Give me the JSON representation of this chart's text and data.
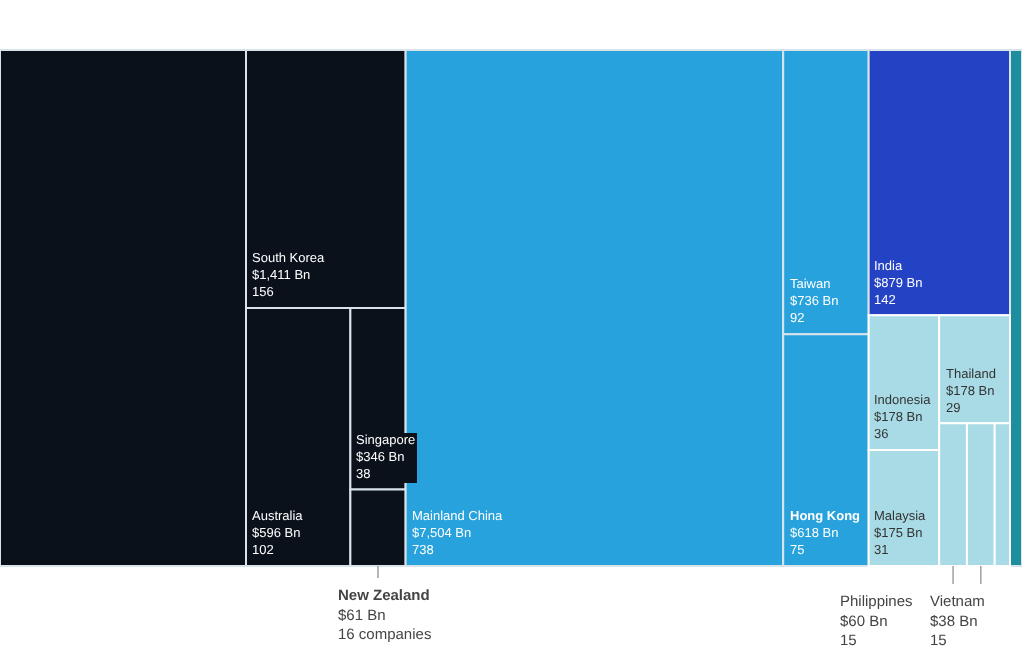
{
  "chart_data": {
    "type": "other",
    "categories": [
      null,
      "South Korea",
      "Australia",
      "Singapore",
      "New Zealand",
      "Mainland China",
      "Taiwan",
      "Hong Kong",
      "India",
      null,
      "Indonesia",
      "Thailand",
      "Malaysia",
      "Philippines",
      "Vietnam",
      null
    ],
    "series": [
      {
        "values": [
          null,
          1411,
          596,
          346,
          61,
          7504,
          736,
          618,
          879,
          null,
          178,
          178,
          175,
          60,
          38,
          null
        ],
        "value_labels": [
          null,
          "$1,411 Bn",
          "$596 Bn",
          "$346 Bn",
          "$61 Bn",
          "$7,504 Bn",
          "$736 Bn",
          "$618 Bn",
          "$879 Bn",
          null,
          "$178 Bn",
          "$178 Bn",
          "$175 Bn",
          "$60 Bn",
          "$38 Bn",
          null
        ],
        "colors": [
          "#0b111b",
          "#0b111b",
          "#0b111b",
          "#0b111b",
          "#0b111b",
          "#27a2dc",
          "#27a2dc",
          "#27a2dc",
          "#2442c4",
          "#1d8e9e",
          "#a8dbe6",
          "#a8dbe6",
          "#a8dbe6",
          "#a8dbe6",
          "#a8dbe6",
          "#a8dbe6"
        ]
      },
      {
        "values": [
          null,
          156,
          102,
          38,
          16,
          738,
          92,
          75,
          142,
          null,
          36,
          29,
          31,
          15,
          15,
          null
        ],
        "value_labels": [
          null,
          "156",
          "102",
          "38",
          "16 companies",
          "738",
          "92",
          "75",
          "142",
          null,
          "36",
          "29",
          "31",
          "15",
          "15",
          null
        ]
      }
    ]
  }
}
